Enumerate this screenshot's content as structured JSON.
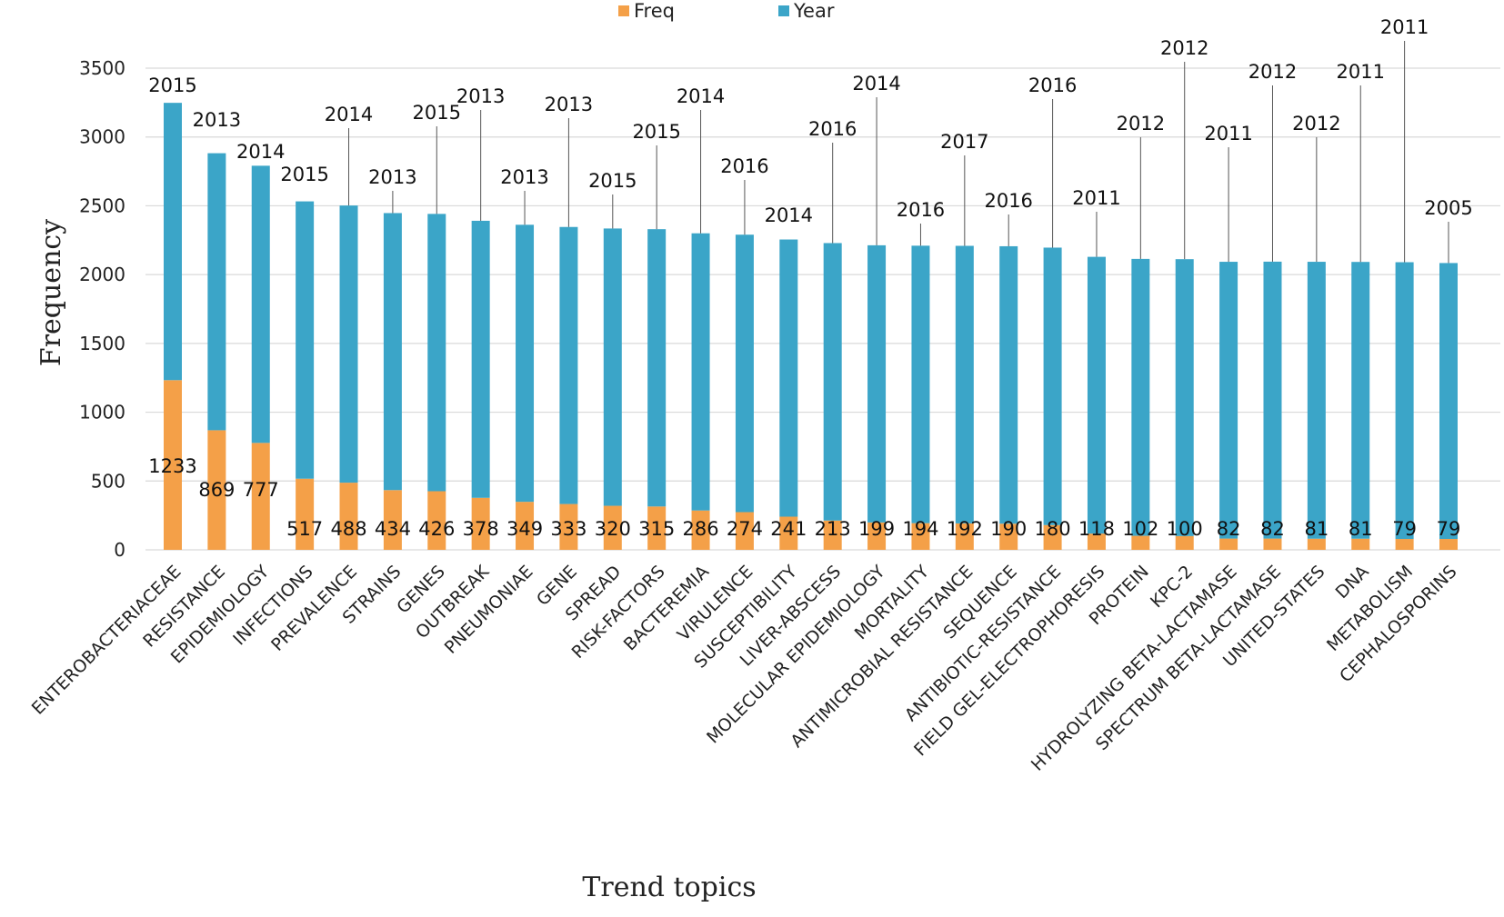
{
  "chart_data": {
    "type": "bar",
    "stacked": true,
    "title": "",
    "xlabel": "Trend topics",
    "ylabel": "Frequency",
    "ylim": [
      0,
      3500
    ],
    "yticks": [
      0,
      500,
      1000,
      1500,
      2000,
      2500,
      3000,
      3500
    ],
    "grid": true,
    "legend_position": "top-center",
    "categories": [
      "ENTEROBACTERIACEAE",
      "RESISTANCE",
      "EPIDEMIOLOGY",
      "INFECTIONS",
      "PREVALENCE",
      "STRAINS",
      "GENES",
      "OUTBREAK",
      "PNEUMONIAE",
      "GENE",
      "SPREAD",
      "RISK-FACTORS",
      "BACTEREMIA",
      "VIRULENCE",
      "SUSCEPTIBILITY",
      "LIVER-ABSCESS",
      "MOLECULAR EPIDEMIOLOGY",
      "MORTALITY",
      "ANTIMICROBIAL RESISTANCE",
      "SEQUENCE",
      "ANTIBIOTIC-RESISTANCE",
      "FIELD GEL-ELECTROPHORESIS",
      "PROTEIN",
      "KPC-2",
      "HYDROLYZING BETA-LACTAMASE",
      "SPECTRUM BETA-LACTAMASE",
      "UNITED-STATES",
      "DNA",
      "METABOLISM",
      "CEPHALOSPORINS"
    ],
    "series": [
      {
        "name": "Freq",
        "color": "#f4a048",
        "values": [
          1233,
          869,
          777,
          517,
          488,
          434,
          426,
          378,
          349,
          333,
          320,
          315,
          286,
          274,
          241,
          213,
          199,
          194,
          192,
          190,
          180,
          118,
          102,
          100,
          82,
          82,
          81,
          81,
          79,
          79
        ]
      },
      {
        "name": "Year",
        "color": "#3ba5c8",
        "values": [
          2015,
          2013,
          2014,
          2015,
          2014,
          2013,
          2015,
          2013,
          2013,
          2013,
          2015,
          2015,
          2014,
          2016,
          2014,
          2016,
          2014,
          2016,
          2017,
          2016,
          2016,
          2011,
          2012,
          2012,
          2011,
          2012,
          2012,
          2011,
          2011,
          2005
        ]
      }
    ]
  }
}
